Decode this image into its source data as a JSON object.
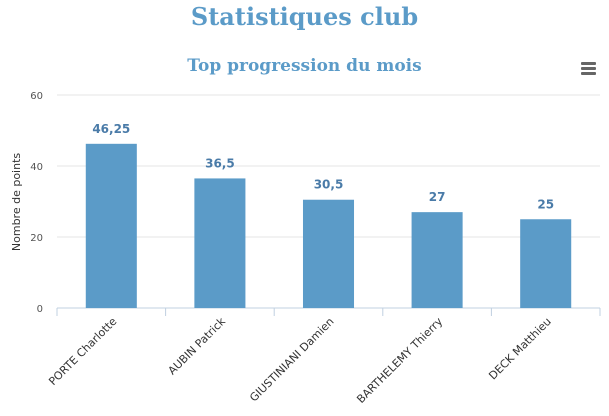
{
  "page": {
    "title": "Statistiques club"
  },
  "chart_data": {
    "type": "bar",
    "title": "Top progression du mois",
    "xlabel": "",
    "ylabel": "Nombre de points",
    "categories": [
      "PORTE Charlotte",
      "AUBIN Patrick",
      "GIUSTINIANI Damien",
      "BARTHELEMY Thierry",
      "DECK Matthieu"
    ],
    "values": [
      46.25,
      36.5,
      30.5,
      27,
      25
    ],
    "data_labels": [
      "46,25",
      "36,5",
      "30,5",
      "27",
      "25"
    ],
    "yticks": [
      0,
      20,
      40,
      60
    ],
    "ylim": [
      0,
      60
    ],
    "grid": true,
    "bar_color": "#5b9bc8",
    "label_color": "#4a7ba8"
  },
  "toolbar": {
    "menu_icon": "hamburger-menu-icon"
  }
}
